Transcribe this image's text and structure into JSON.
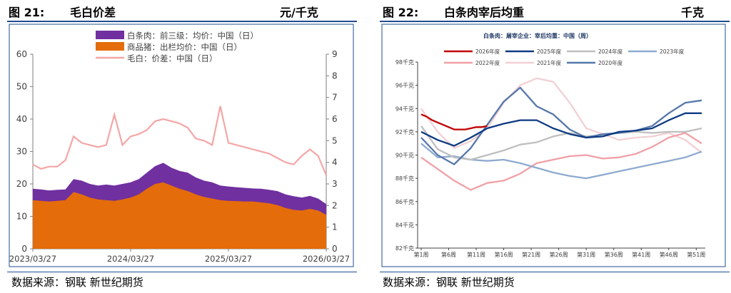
{
  "left": {
    "figure_no": "图 21:",
    "title": "毛白价差",
    "unit": "元/千克",
    "source": "数据来源：钢联   新世纪期货"
  },
  "right": {
    "figure_no": "图 22:",
    "title": "白条肉宰后均重",
    "unit": "千克",
    "source": "数据来源：钢联   新世纪期货"
  },
  "colors": {
    "white_bar": "#7030a0",
    "hog_price": "#e46c0a",
    "spread": "#f4a6a6",
    "header_rule": "#1f4e8c",
    "y2026": "#c00000",
    "y2025": "#0e3a82",
    "y2024": "#bfbfbf",
    "y2023": "#8eaad0",
    "y2022": "#f0a0a6",
    "y2021": "#f2d0d4",
    "y2020": "#5577aa"
  },
  "chart_data": [
    {
      "type": "area",
      "title": "毛白价差",
      "unit": "元/千克",
      "x_tick_labels": [
        "2023/03/27",
        "2024/03/27",
        "2025/03/27",
        "2026/03/27"
      ],
      "x": [
        "2023/03",
        "2023/04",
        "2023/05",
        "2023/06",
        "2023/07",
        "2023/08",
        "2023/09",
        "2023/10",
        "2023/11",
        "2023/12",
        "2024/01",
        "2024/02",
        "2024/03",
        "2024/04",
        "2024/05",
        "2024/06",
        "2024/07",
        "2024/08",
        "2024/09",
        "2024/10",
        "2024/11",
        "2024/12",
        "2025/01",
        "2025/02",
        "2025/03",
        "2025/04",
        "2025/05",
        "2025/06",
        "2025/07",
        "2025/08",
        "2025/09",
        "2025/10",
        "2025/11",
        "2025/12",
        "2026/01",
        "2026/02",
        "2026/03"
      ],
      "ylim_left": [
        0,
        60
      ],
      "y_ticks_left": [
        0,
        10,
        20,
        30,
        40,
        50,
        60
      ],
      "ylim_right": [
        0,
        9
      ],
      "y_ticks_right": [
        0,
        1,
        2,
        3,
        4,
        5,
        6,
        7,
        8,
        9
      ],
      "legend": [
        "白条肉：前三级：均价：中国（日）",
        "商品猪：出栏均价：中国（日）",
        "毛白：价差：中国（日）"
      ],
      "series": [
        {
          "name": "白条肉：前三级：均价：中国（日）",
          "kind": "area",
          "axis": "left",
          "values": [
            18.5,
            18.3,
            18.0,
            18.2,
            18.3,
            21.5,
            21.0,
            20.0,
            19.5,
            19.8,
            19.5,
            20.0,
            20.5,
            21.5,
            23.5,
            25.5,
            26.5,
            25.0,
            24.0,
            23.5,
            22.0,
            21.0,
            20.5,
            19.5,
            19.2,
            19.0,
            18.8,
            18.6,
            18.5,
            18.2,
            17.8,
            16.8,
            16.2,
            15.8,
            16.3,
            15.5,
            13.8
          ]
        },
        {
          "name": "商品猪：出栏均价：中国（日）",
          "kind": "area",
          "axis": "left",
          "values": [
            15.0,
            14.8,
            14.6,
            14.8,
            15.0,
            17.5,
            16.8,
            15.8,
            15.2,
            15.0,
            14.8,
            15.2,
            15.8,
            16.8,
            18.5,
            20.0,
            20.5,
            19.5,
            18.5,
            17.8,
            16.8,
            16.0,
            15.5,
            15.0,
            14.8,
            14.7,
            14.6,
            14.6,
            14.3,
            14.0,
            13.5,
            12.6,
            12.0,
            11.8,
            12.3,
            11.8,
            10.5
          ]
        },
        {
          "name": "毛白：价差：中国（日）",
          "kind": "line",
          "axis": "right",
          "values": [
            3.9,
            3.7,
            3.8,
            3.8,
            4.1,
            5.2,
            4.9,
            4.8,
            4.7,
            4.8,
            6.2,
            4.8,
            5.2,
            5.3,
            5.5,
            5.9,
            6.0,
            5.9,
            5.8,
            5.6,
            5.1,
            5.0,
            4.8,
            6.6,
            4.9,
            4.8,
            4.7,
            4.6,
            4.5,
            4.4,
            4.2,
            4.0,
            3.9,
            4.3,
            4.6,
            4.3,
            3.4
          ]
        }
      ]
    },
    {
      "type": "line",
      "title": "白条肉：屠宰企业：宰后均重：中国（周）",
      "unit": "千克",
      "x_tick_labels": [
        "第1周",
        "第6周",
        "第11周",
        "第16周",
        "第21周",
        "第26周",
        "第31周",
        "第36周",
        "第41周",
        "第46周",
        "第51周"
      ],
      "x_tick_weeks": [
        1,
        6,
        11,
        16,
        21,
        26,
        31,
        36,
        41,
        46,
        51
      ],
      "ylim": [
        82,
        98
      ],
      "y_ticks": [
        82,
        84,
        86,
        88,
        90,
        92,
        94,
        96,
        98
      ],
      "y_tick_labels": [
        "82千克",
        "84千克",
        "86千克",
        "88千克",
        "90千克",
        "92千克",
        "94千克",
        "96千克",
        "98千克"
      ],
      "series": [
        {
          "name": "2026年度",
          "weeks": [
            1,
            2,
            3,
            4,
            5,
            6,
            7,
            8,
            9,
            10,
            11,
            12,
            13
          ],
          "values": [
            93.5,
            93.3,
            93.0,
            92.8,
            92.6,
            92.4,
            92.2,
            92.2,
            92.2,
            92.3,
            92.4,
            92.4,
            92.5
          ]
        },
        {
          "name": "2025年度",
          "weeks": [
            1,
            4,
            7,
            10,
            13,
            16,
            19,
            22,
            25,
            28,
            31,
            34,
            37,
            40,
            43,
            46,
            49,
            52
          ],
          "values": [
            92.0,
            91.3,
            90.8,
            91.5,
            92.3,
            92.7,
            93.0,
            93.0,
            92.3,
            91.8,
            91.5,
            91.6,
            92.0,
            92.1,
            92.3,
            93.0,
            93.6,
            93.6
          ]
        },
        {
          "name": "2024年度",
          "weeks": [
            1,
            4,
            7,
            10,
            13,
            16,
            19,
            22,
            25,
            28,
            31,
            34,
            37,
            40,
            43,
            46,
            49,
            52
          ],
          "values": [
            92.5,
            90.5,
            89.8,
            89.6,
            90.0,
            90.4,
            90.9,
            91.1,
            91.6,
            91.9,
            91.6,
            91.7,
            91.9,
            92.0,
            91.9,
            92.0,
            92.0,
            92.3
          ]
        },
        {
          "name": "2023年度",
          "weeks": [
            1,
            4,
            7,
            10,
            13,
            16,
            19,
            22,
            25,
            28,
            31,
            34,
            37,
            40,
            43,
            46,
            49,
            52
          ],
          "values": [
            91.0,
            89.8,
            89.9,
            89.6,
            89.5,
            89.6,
            89.3,
            88.9,
            88.5,
            88.2,
            88.0,
            88.3,
            88.6,
            88.9,
            89.2,
            89.5,
            89.8,
            90.3
          ]
        },
        {
          "name": "2022年度",
          "weeks": [
            1,
            4,
            7,
            10,
            13,
            16,
            19,
            22,
            25,
            28,
            31,
            34,
            37,
            40,
            43,
            46,
            49,
            52
          ],
          "values": [
            89.8,
            88.8,
            87.8,
            87.0,
            87.6,
            87.8,
            88.4,
            89.3,
            89.6,
            89.9,
            90.0,
            89.7,
            89.8,
            90.1,
            90.7,
            91.5,
            91.9,
            91.0
          ]
        },
        {
          "name": "2021年度",
          "weeks": [
            1,
            4,
            7,
            10,
            13,
            16,
            19,
            22,
            25,
            28,
            31,
            34,
            37,
            40,
            43,
            46,
            49,
            52
          ],
          "values": [
            94.0,
            92.0,
            90.6,
            91.2,
            92.3,
            94.5,
            96.0,
            96.6,
            96.3,
            94.5,
            92.3,
            91.8,
            91.3,
            91.5,
            91.6,
            91.9,
            91.3,
            90.2
          ]
        },
        {
          "name": "2020年度",
          "weeks": [
            1,
            4,
            7,
            10,
            13,
            16,
            19,
            22,
            25,
            28,
            31,
            34,
            37,
            40,
            43,
            46,
            49,
            52
          ],
          "values": [
            91.5,
            90.0,
            89.2,
            90.6,
            92.6,
            94.6,
            95.8,
            94.2,
            93.5,
            92.2,
            91.5,
            91.8,
            91.9,
            92.1,
            92.5,
            93.6,
            94.5,
            94.7
          ]
        }
      ]
    }
  ]
}
